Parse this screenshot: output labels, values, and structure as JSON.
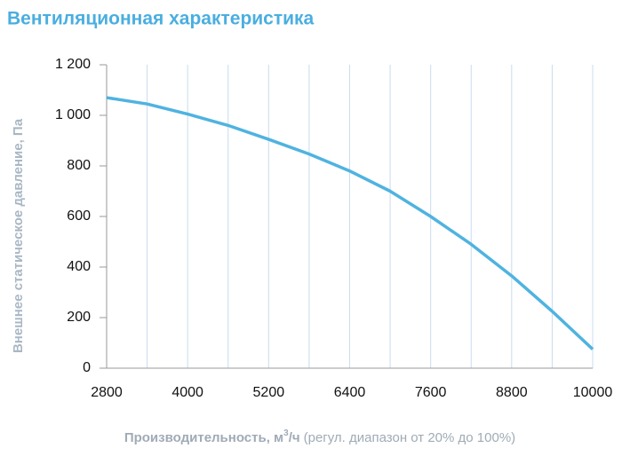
{
  "chart_data": {
    "type": "line",
    "title": "Вентиляционная характеристика",
    "y_label": "Внешнее статическое давление, Па",
    "x_label_main": "Производительность, м",
    "x_label_sup": "3",
    "x_label_unit": "/ч",
    "x_label_note": "(регул. диапазон от 20% до 100%)",
    "x": [
      2800,
      3400,
      4000,
      4600,
      5200,
      5800,
      6400,
      7000,
      7600,
      8200,
      8800,
      9400,
      10000
    ],
    "series": [
      {
        "name": "Вентиляционная характеристика",
        "color": "#4fb3e0",
        "values": [
          1070,
          1045,
          1005,
          960,
          905,
          847,
          780,
          700,
          600,
          490,
          365,
          225,
          75
        ]
      }
    ],
    "xlim": [
      2800,
      10000
    ],
    "xticks": [
      2800,
      4000,
      5200,
      6400,
      7600,
      8800,
      10000
    ],
    "x_minor_grid": [
      3400,
      4600,
      5800,
      7000,
      8200,
      9400
    ],
    "ylim": [
      0,
      1200
    ],
    "yticks": [
      0,
      200,
      400,
      600,
      800,
      {
        "value": 1000,
        "label": "1 000"
      },
      {
        "value": 1200,
        "label": "1 200"
      }
    ],
    "grid": true
  }
}
